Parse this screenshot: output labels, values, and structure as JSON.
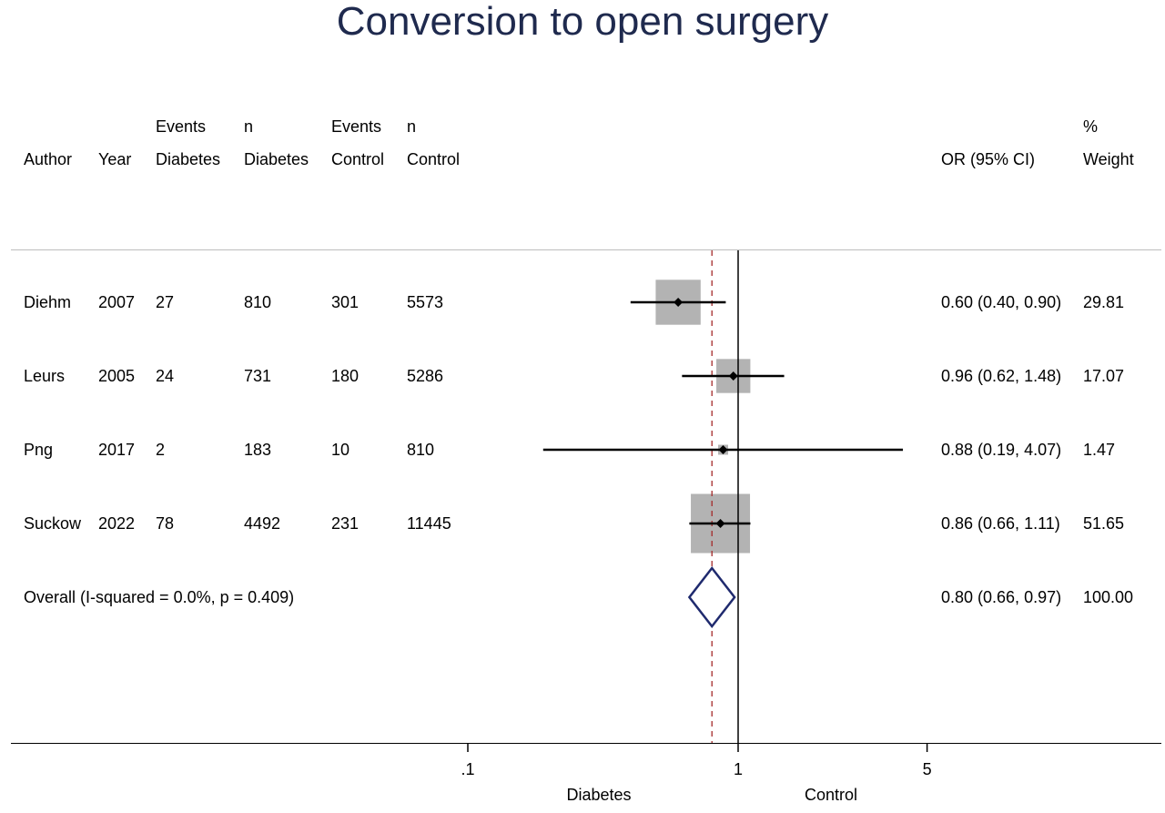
{
  "chart_data": {
    "type": "forest",
    "title": "Conversion to open surgery",
    "columns": [
      {
        "key": "author",
        "top": "",
        "bottom": "Author"
      },
      {
        "key": "year",
        "top": "",
        "bottom": "Year"
      },
      {
        "key": "events_diabetes",
        "top": "Events",
        "bottom": "Diabetes"
      },
      {
        "key": "n_diabetes",
        "top": "n",
        "bottom": "Diabetes"
      },
      {
        "key": "events_control",
        "top": "Events",
        "bottom": "Control"
      },
      {
        "key": "n_control",
        "top": "n",
        "bottom": "Control"
      },
      {
        "key": "or_ci",
        "top": "",
        "bottom": "OR (95% CI)"
      },
      {
        "key": "weight",
        "top": "%",
        "bottom": "Weight"
      }
    ],
    "studies": [
      {
        "author": "Diehm",
        "year": "2007",
        "events_diabetes": "27",
        "n_diabetes": "810",
        "events_control": "301",
        "n_control": "5573",
        "or": 0.6,
        "lower": 0.4,
        "upper": 0.9,
        "or_ci": "0.60 (0.40, 0.90)",
        "weight": "29.81",
        "weight_value": 29.81
      },
      {
        "author": "Leurs",
        "year": "2005",
        "events_diabetes": "24",
        "n_diabetes": "731",
        "events_control": "180",
        "n_control": "5286",
        "or": 0.96,
        "lower": 0.62,
        "upper": 1.48,
        "or_ci": "0.96 (0.62, 1.48)",
        "weight": "17.07",
        "weight_value": 17.07
      },
      {
        "author": "Png",
        "year": "2017",
        "events_diabetes": "2",
        "n_diabetes": "183",
        "events_control": "10",
        "n_control": "810",
        "or": 0.88,
        "lower": 0.19,
        "upper": 4.07,
        "or_ci": "0.88 (0.19, 4.07)",
        "weight": "1.47",
        "weight_value": 1.47
      },
      {
        "author": "Suckow",
        "year": "2022",
        "events_diabetes": "78",
        "n_diabetes": "4492",
        "events_control": "231",
        "n_control": "11445",
        "or": 0.86,
        "lower": 0.66,
        "upper": 1.11,
        "or_ci": "0.86 (0.66, 1.11)",
        "weight": "51.65",
        "weight_value": 51.65
      }
    ],
    "overall": {
      "label": "Overall  (I-squared = 0.0%, p = 0.409)",
      "or": 0.8,
      "lower": 0.66,
      "upper": 0.97,
      "or_ci": "0.80 (0.66, 0.97)",
      "weight": "100.00"
    },
    "x_scale": "log",
    "x_ticks": [
      {
        "value": 0.1,
        "label": ".1"
      },
      {
        "value": 1,
        "label": "1"
      },
      {
        "value": 5,
        "label": "5"
      }
    ],
    "x_side_labels": {
      "left": "Diabetes",
      "right": "Control"
    },
    "null_line": 1,
    "colors": {
      "title": "#1f2a4e",
      "box": "#b3b3b3",
      "diamond": "#1f2a6e",
      "overall_line": "#a52a2a",
      "text": "#000000"
    }
  }
}
